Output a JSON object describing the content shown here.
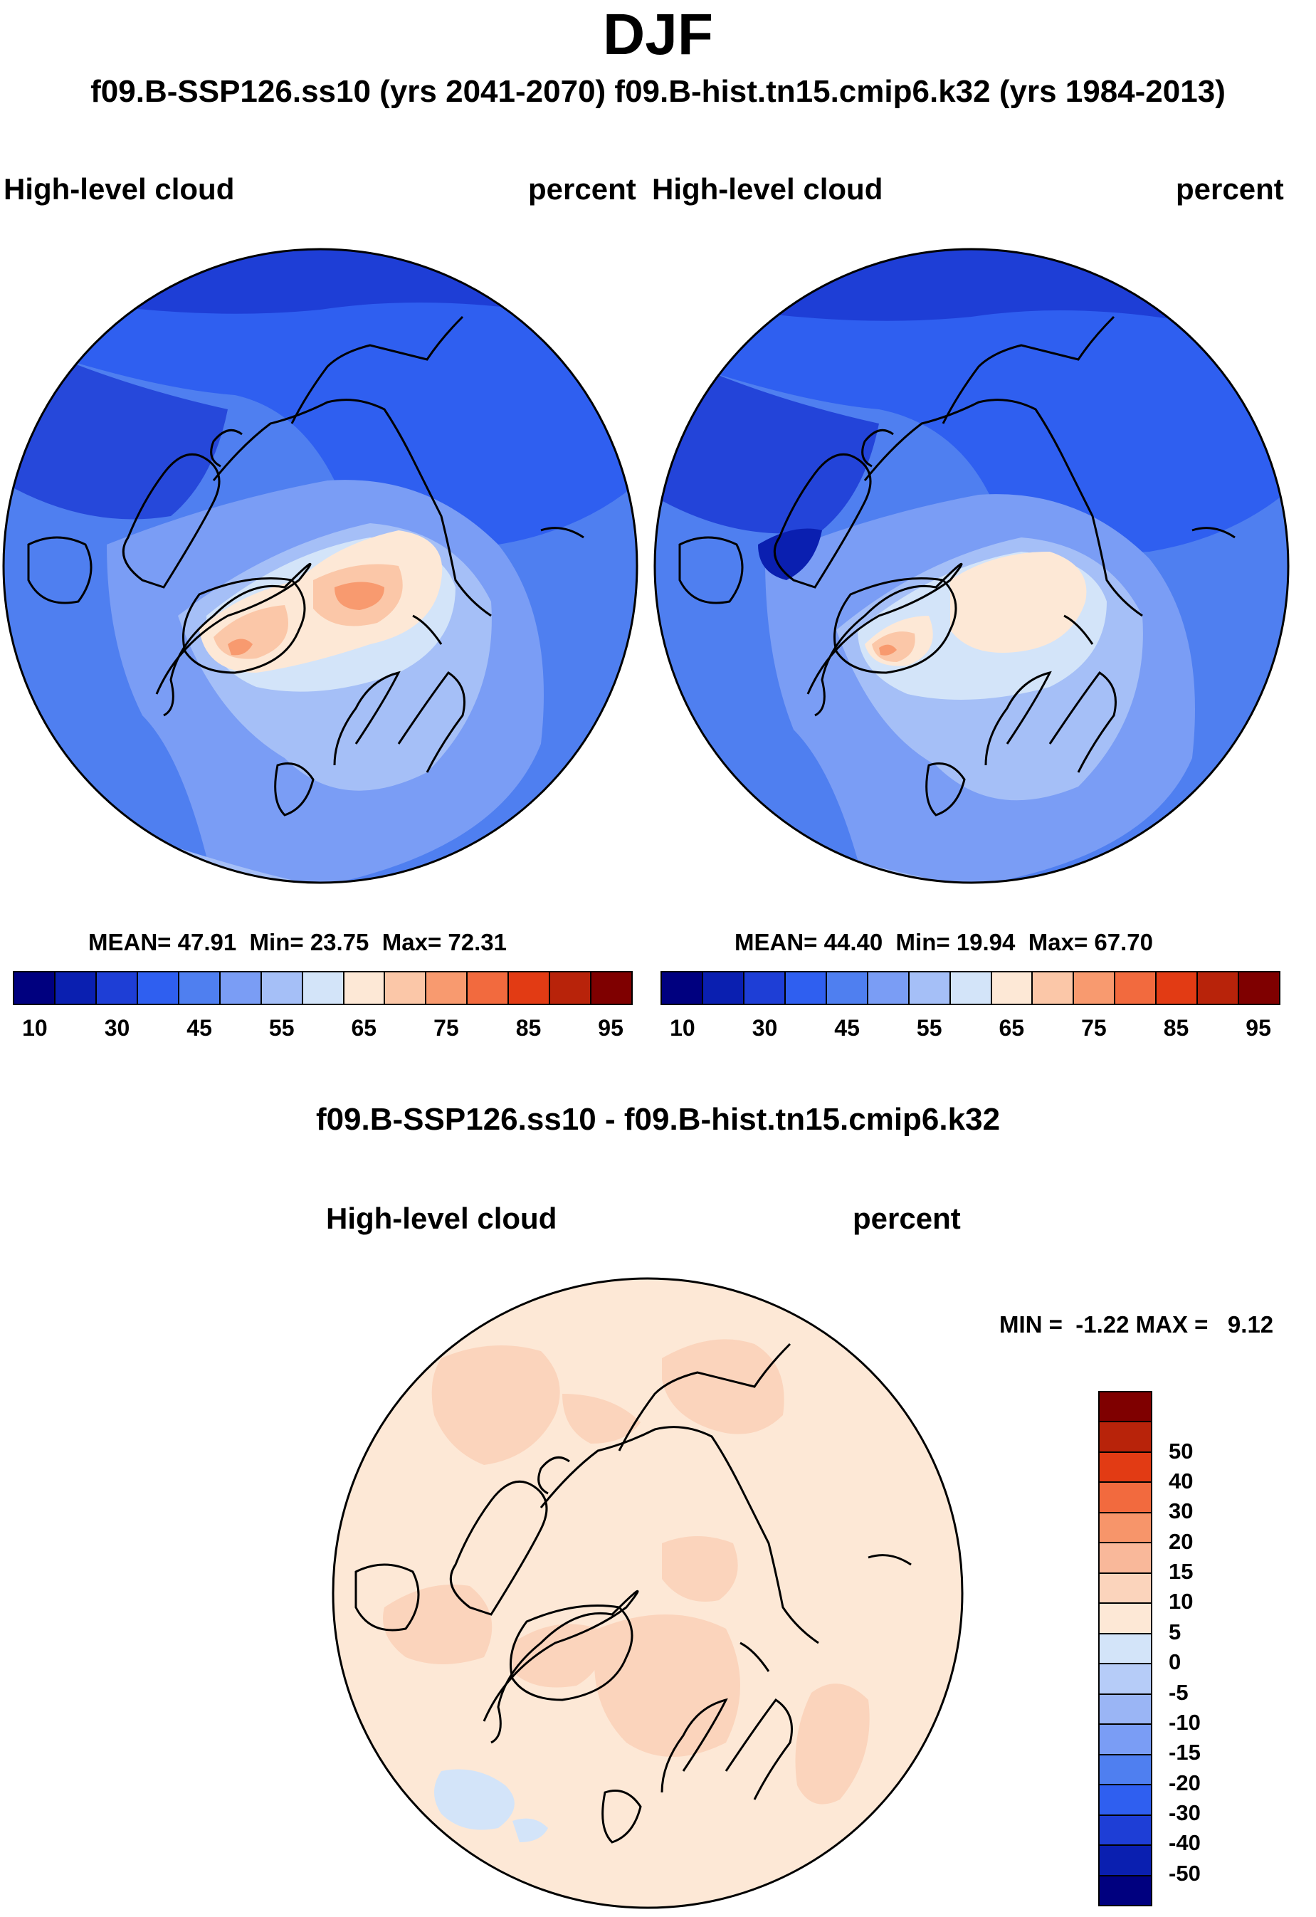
{
  "season": "DJF",
  "subtitle": "f09.B-SSP126.ss10 (yrs 2041-2070)  f09.B-hist.tn15.cmip6.k32 (yrs 1984-2013)",
  "panels": [
    {
      "variable": "High-level cloud",
      "units": "percent",
      "stats": {
        "mean_label": "MEAN=",
        "mean": "47.91",
        "min_label": "Min=",
        "min": "23.75",
        "max_label": "Max=",
        "max": "72.31"
      }
    },
    {
      "variable": "High-level cloud",
      "units": "percent",
      "stats": {
        "mean_label": "MEAN=",
        "mean": "44.40",
        "min_label": "Min=",
        "min": "19.94",
        "max_label": "Max=",
        "max": "67.70"
      }
    }
  ],
  "colorbar": {
    "colors": [
      "#00007f",
      "#0a1fb0",
      "#1e3ed6",
      "#2f5ff0",
      "#4f7ff0",
      "#7a9df5",
      "#a5bff7",
      "#d3e4f9",
      "#fde8d6",
      "#fbc7a8",
      "#f89a6f",
      "#f26a3e",
      "#e23b14",
      "#b8230a",
      "#7f0000"
    ],
    "ticks": [
      "10",
      "30",
      "45",
      "55",
      "65",
      "75",
      "85",
      "95"
    ]
  },
  "diff": {
    "title": "f09.B-SSP126.ss10 - f09.B-hist.tn15.cmip6.k32",
    "variable": "High-level cloud",
    "units": "percent",
    "stats_text": "MIN =  -1.22 MAX =   9.12",
    "colors": [
      "#7f0000",
      "#b8230a",
      "#e23b14",
      "#f26a3e",
      "#f7956a",
      "#f9b89a",
      "#fbd4bc",
      "#fde8d6",
      "#d3e4f9",
      "#b6ccf8",
      "#9ab5f5",
      "#7a9df5",
      "#4f7ff0",
      "#2f5ff0",
      "#1e3ed6",
      "#0a1fb0",
      "#00007f"
    ],
    "ticks": [
      "50",
      "40",
      "30",
      "20",
      "15",
      "10",
      "5",
      "0",
      "-5",
      "-10",
      "-15",
      "-20",
      "-30",
      "-40",
      "-50"
    ]
  }
}
